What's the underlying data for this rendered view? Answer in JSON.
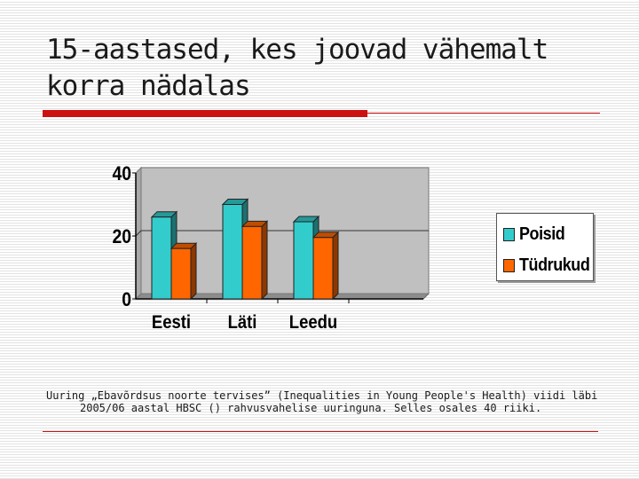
{
  "slide": {
    "title": "15-aastased, kes joovad vähemalt korra nädalas",
    "footnote": "Uuring „Ebavõrdsus noorte tervises” (Inequalities in Young People's Health) viidi läbi 2005/06 aastal HBSC () rahvusvahelise uuringuna. Selles osales 40 riiki."
  },
  "colors": {
    "title_rule": "#cc1111",
    "plot_wall": "#c0c0c0",
    "plot_floor": "#8c8c8c"
  },
  "chart_data": {
    "type": "bar",
    "style": "3d-clustered",
    "categories": [
      "Eesti",
      "Läti",
      "Leedu"
    ],
    "series": [
      {
        "name": "Poisid",
        "values": [
          26,
          30,
          24.5
        ],
        "color": "#33cccc"
      },
      {
        "name": "Tüdrukud",
        "values": [
          16,
          23,
          19.5
        ],
        "color": "#ff6600"
      }
    ],
    "ylim": [
      0,
      40
    ],
    "yticks": [
      0,
      20,
      40
    ],
    "grid": true,
    "legend_position": "right"
  }
}
